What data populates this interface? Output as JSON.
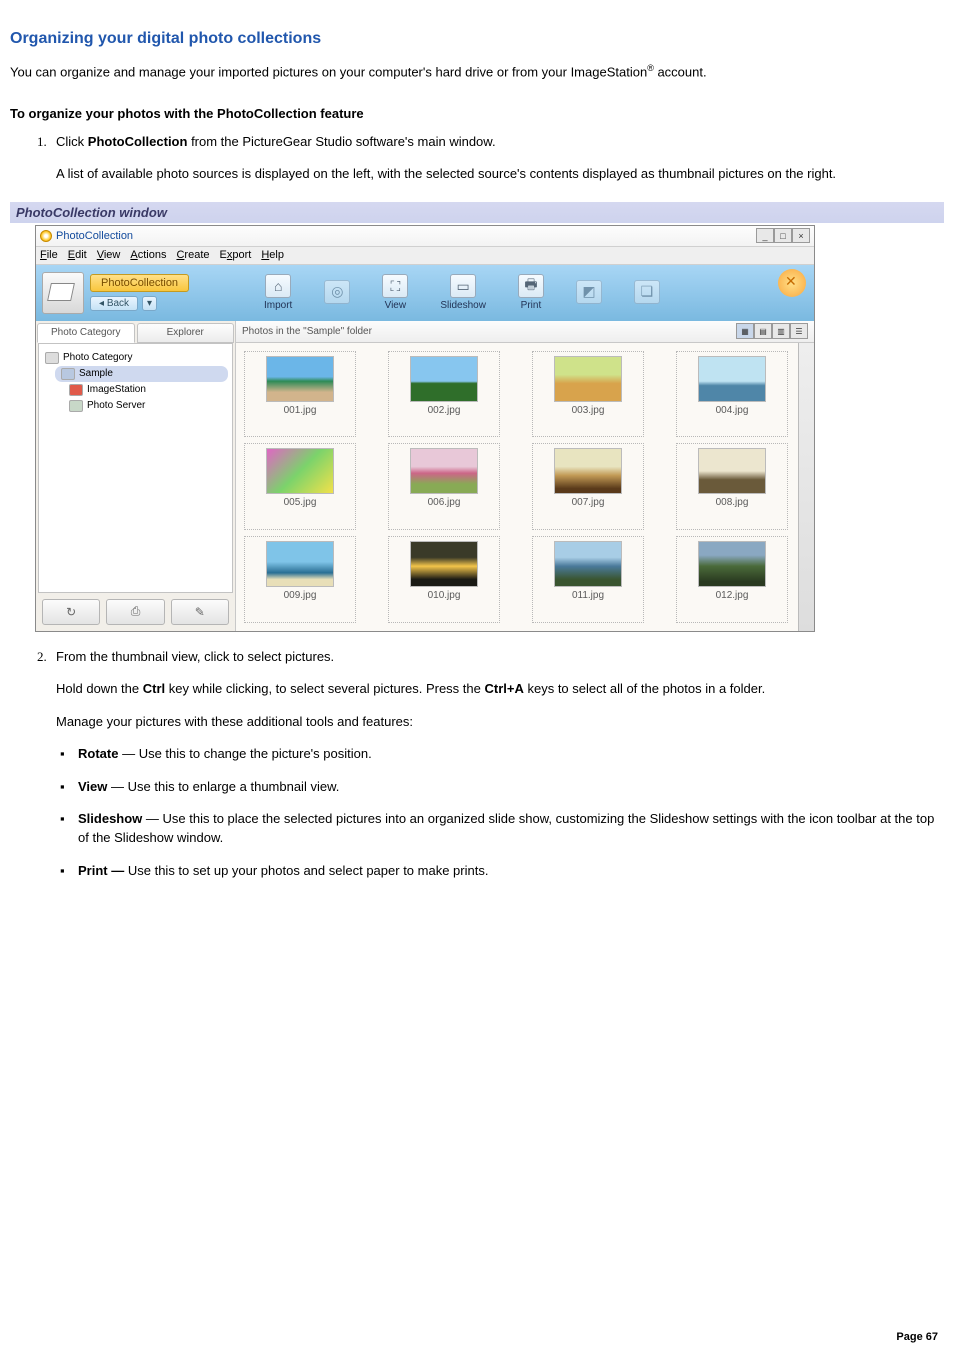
{
  "page": {
    "title": "Organizing your digital photo collections",
    "intro_a": "You can organize and manage your imported pictures on your computer's hard drive or from your ImageStation",
    "intro_b": " account.",
    "subhead": "To organize your photos with the PhotoCollection feature",
    "page_number": "Page 67",
    "caption": "PhotoCollection window"
  },
  "steps": {
    "s1a": "Click ",
    "s1b": "PhotoCollection",
    "s1c": " from the PictureGear Studio    software's main window.",
    "s1_desc": "A list of available photo sources is displayed on the left, with the selected source's contents displayed as thumbnail pictures on the right.",
    "s2": "From the thumbnail view, click to select pictures.",
    "s2_desc_a": "Hold down the ",
    "s2_desc_b": "Ctrl",
    "s2_desc_c": " key while clicking, to select several pictures. Press the ",
    "s2_desc_d": "Ctrl+A",
    "s2_desc_e": " keys to select all of the photos in a folder.",
    "s2_tools": "Manage your pictures with these additional tools and features:"
  },
  "features": [
    {
      "name": "Rotate",
      "sep": " — ",
      "desc": "Use this to change the picture's position."
    },
    {
      "name": "View",
      "sep": " — ",
      "desc": "Use this to enlarge a thumbnail view."
    },
    {
      "name": "Slideshow",
      "sep": " — ",
      "desc": "Use this to place the selected pictures into an organized slide show, customizing the Slideshow settings with the icon toolbar at the top of the Slideshow window."
    },
    {
      "name": "Print —",
      "sep": " ",
      "desc": "Use this to set up your photos and select paper to make prints."
    }
  ],
  "window": {
    "title": "PhotoCollection",
    "menu": [
      "File",
      "Edit",
      "View",
      "Actions",
      "Create",
      "Export",
      "Help"
    ],
    "tag": "PhotoCollection",
    "back": "Back",
    "toolbar": [
      {
        "label": "Import",
        "glyph": "⌂",
        "dim": false
      },
      {
        "label": "",
        "glyph": "◎",
        "dim": true
      },
      {
        "label": "View",
        "glyph": "⛶",
        "dim": false
      },
      {
        "label": "Slideshow",
        "glyph": "▭",
        "dim": false
      },
      {
        "label": "Print",
        "glyph": "🖶",
        "dim": false
      },
      {
        "label": "",
        "glyph": "◩",
        "dim": true
      },
      {
        "label": "",
        "glyph": "❏",
        "dim": true
      }
    ],
    "side_tabs": {
      "a": "Photo Category",
      "b": "Explorer"
    },
    "tree": {
      "root": "Photo Category",
      "sample": "Sample",
      "imagestation": "ImageStation",
      "photoserver": "Photo Server"
    },
    "main_header": "Photos in the \"Sample\" folder",
    "thumbnails": [
      {
        "cap": "001.jpg",
        "grad": "linear-gradient(#6bb6e8 45%,#2e8b57 55%,#d2b48c 80%)"
      },
      {
        "cap": "002.jpg",
        "grad": "linear-gradient(#87c6ef 55%,#2f6e2a 60%)"
      },
      {
        "cap": "003.jpg",
        "grad": "linear-gradient(#cfe28a 40%,#d8a34c 60%)"
      },
      {
        "cap": "004.jpg",
        "grad": "linear-gradient(#bfe3f2 55%,#4f86a8 65%)"
      },
      {
        "cap": "005.jpg",
        "grad": "linear-gradient(135deg,#e066c4,#7bd36b,#f2e14a)"
      },
      {
        "cap": "006.jpg",
        "grad": "linear-gradient(#e8c8d8 40%,#cc6688 55%,#88aa55 80%)"
      },
      {
        "cap": "007.jpg",
        "grad": "linear-gradient(#e8e4c0 40%,#c29a55 60%,#5a3a1a 90%)"
      },
      {
        "cap": "008.jpg",
        "grad": "linear-gradient(#ece6cf 50%,#6a5a3a 70%)"
      },
      {
        "cap": "009.jpg",
        "grad": "linear-gradient(#7fc4e8 45%,#2a6f94 70%,#e8dfb8 85%)"
      },
      {
        "cap": "010.jpg",
        "grad": "linear-gradient(#3a3a28 35%,#f2c44a 55%,#1a1a14 85%)"
      },
      {
        "cap": "011.jpg",
        "grad": "linear-gradient(#a8cde6 35%,#4a7a9a 55%,#3a5530 85%)"
      },
      {
        "cap": "012.jpg",
        "grad": "linear-gradient(#8aa8c2 30%,#4a6a3a 55%,#2a3a20 90%)"
      }
    ]
  }
}
